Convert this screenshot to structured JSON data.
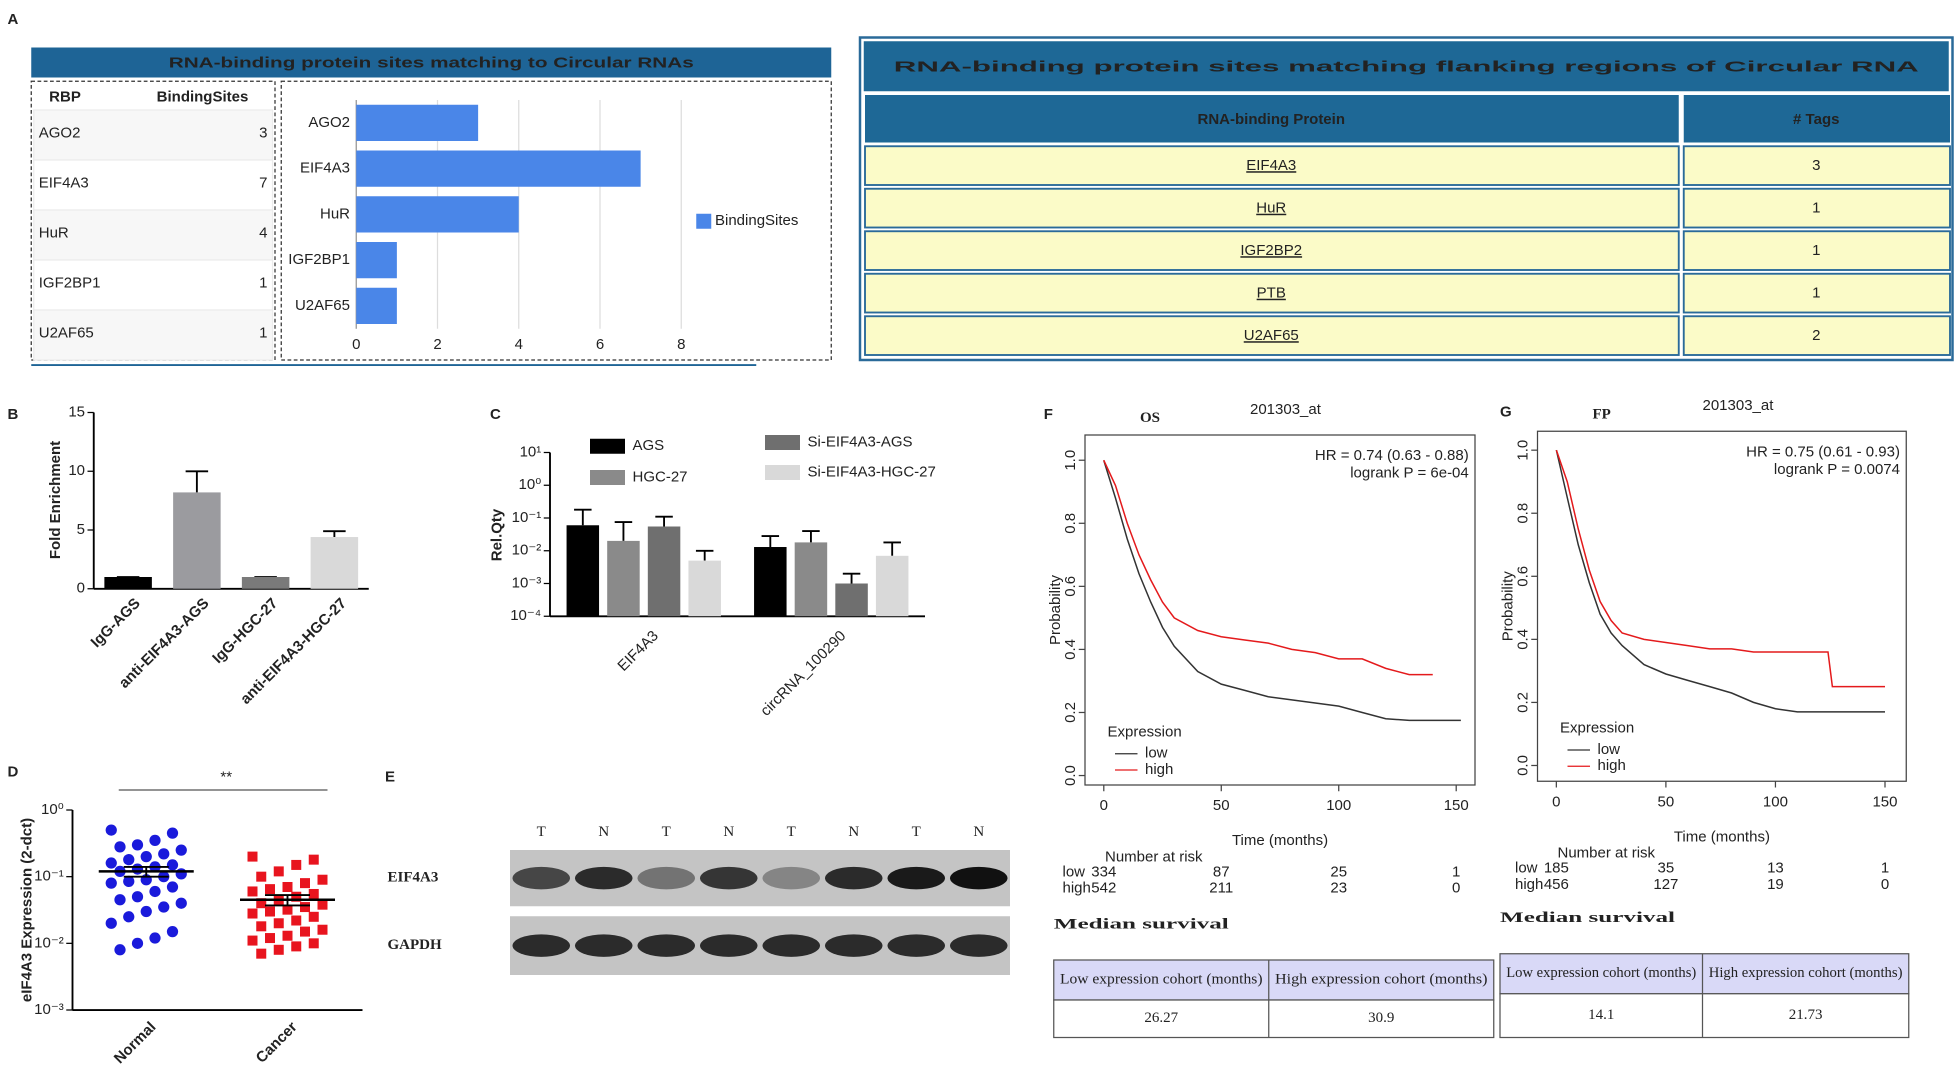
{
  "panel_labels": [
    "A",
    "B",
    "C",
    "D",
    "E",
    "F",
    "G"
  ],
  "binding_table_header": "RBP",
  "flanking_table": {
    "title": "RNA-binding protein sites matching flanking regions of Circular RNA",
    "columns": [
      "RNA-binding Protein",
      "# Tags"
    ],
    "rows": [
      [
        "EIF4A3",
        3
      ],
      [
        "HuR",
        1
      ],
      [
        "IGF2BP2",
        1
      ],
      [
        "PTB",
        1
      ],
      [
        "U2AF65",
        2
      ]
    ]
  },
  "blot": {
    "lanes": [
      "T",
      "N",
      "T",
      "N",
      "T",
      "N",
      "T",
      "N"
    ],
    "rows": [
      "EIF4A3",
      "GAPDH"
    ]
  },
  "chart_data": [
    {
      "type": "bar",
      "orientation": "horizontal",
      "title": "RNA-binding protein sites matching to Circular RNAs",
      "categories": [
        "AGO2",
        "EIF4A3",
        "HuR",
        "IGF2BP1",
        "U2AF65"
      ],
      "series": [
        {
          "name": "BindingSites",
          "color": "#4a86e8",
          "values": [
            3,
            7,
            4,
            1,
            1
          ]
        }
      ],
      "xlim": [
        0,
        8
      ],
      "xticks": [
        0,
        2,
        4,
        6,
        8
      ],
      "grid": true
    },
    {
      "type": "bar",
      "ylabel": "Fold Enrichment",
      "categories": [
        "IgG-AGS",
        "anti-EIF4A3-AGS",
        "IgG-HGC-27",
        "anti-EIF4A3-HGC-27"
      ],
      "values": [
        1,
        8.2,
        1,
        4.4
      ],
      "errors": [
        0,
        1.8,
        0,
        0.5
      ],
      "colors": [
        "#000000",
        "#9b9b9f",
        "#7a7a7a",
        "#d9d9d9"
      ],
      "ylim": [
        0,
        15
      ],
      "yticks": [
        0,
        5,
        10,
        15
      ]
    },
    {
      "type": "bar",
      "log": true,
      "ylabel": "Rel.Qty",
      "categories": [
        "EIF4A3",
        "circRNA_100290"
      ],
      "series": [
        {
          "name": "AGS",
          "color": "#000000",
          "values": [
            0.06,
            0.013
          ],
          "errors": [
            0.12,
            0.015
          ]
        },
        {
          "name": "HGC-27",
          "color": "#8a8a8a",
          "values": [
            0.02,
            0.018
          ],
          "errors": [
            0.055,
            0.022
          ]
        },
        {
          "name": "Si-EIF4A3-AGS",
          "color": "#6f6f6f",
          "values": [
            0.055,
            0.001
          ],
          "errors": [
            0.055,
            0.001
          ]
        },
        {
          "name": "Si-EIF4A3-HGC-27",
          "color": "#d9d9d9",
          "values": [
            0.005,
            0.007
          ],
          "errors": [
            0.005,
            0.011
          ]
        }
      ],
      "ylim": [
        0.0001,
        10
      ],
      "yticks": [
        {
          "value": 0.0001,
          "label": "10⁻⁴"
        },
        {
          "value": 0.001,
          "label": "10⁻³"
        },
        {
          "value": 0.01,
          "label": "10⁻²"
        },
        {
          "value": 0.1,
          "label": "10⁻¹"
        },
        {
          "value": 1,
          "label": "10⁰"
        },
        {
          "value": 10,
          "label": "10¹"
        }
      ]
    },
    {
      "type": "scatter",
      "ylabel": "eIF4A3 Expression (2-dct)",
      "categories": [
        "Normal",
        "Cancer"
      ],
      "values": [
        [
          0.5,
          0.45,
          0.35,
          0.3,
          0.28,
          0.25,
          0.22,
          0.2,
          0.18,
          0.16,
          0.15,
          0.14,
          0.13,
          0.12,
          0.11,
          0.1,
          0.09,
          0.085,
          0.08,
          0.07,
          0.06,
          0.05,
          0.045,
          0.04,
          0.035,
          0.03,
          0.025,
          0.02,
          0.015,
          0.012,
          0.01,
          0.008
        ],
        [
          0.2,
          0.18,
          0.15,
          0.12,
          0.1,
          0.09,
          0.08,
          0.07,
          0.065,
          0.06,
          0.055,
          0.05,
          0.045,
          0.04,
          0.038,
          0.035,
          0.032,
          0.03,
          0.028,
          0.025,
          0.022,
          0.02,
          0.018,
          0.016,
          0.015,
          0.013,
          0.012,
          0.011,
          0.01,
          0.009,
          0.008,
          0.007
        ]
      ],
      "colors": [
        "#1a1adb",
        "#e8141e"
      ],
      "means": [
        0.12,
        0.045
      ],
      "errors": [
        0.02,
        0.008
      ],
      "annotation": "**",
      "ylim": [
        0.001,
        1
      ],
      "yticks": [
        {
          "value": 0.001,
          "label": "10⁻³"
        },
        {
          "value": 0.01,
          "label": "10⁻²"
        },
        {
          "value": 0.1,
          "label": "10⁻¹"
        },
        {
          "value": 1,
          "label": "10⁰"
        }
      ]
    },
    {
      "type": "line",
      "title": "OS",
      "subtitle": "201303_at",
      "annotations": [
        "HR = 0.74 (0.63 - 0.88)",
        "logrank P = 6e-04"
      ],
      "xlabel": "Time (months)",
      "ylabel": "Probability",
      "legend_title": "Expression",
      "x": [
        0,
        5,
        10,
        15,
        20,
        25,
        30,
        40,
        50,
        60,
        70,
        80,
        90,
        100,
        110,
        120,
        130,
        140,
        152
      ],
      "series": [
        {
          "name": "low",
          "color": "#333333",
          "values": [
            1,
            0.88,
            0.75,
            0.64,
            0.55,
            0.47,
            0.41,
            0.33,
            0.29,
            0.27,
            0.25,
            0.24,
            0.23,
            0.22,
            0.2,
            0.18,
            0.175,
            0.175,
            0.175
          ]
        },
        {
          "name": "high",
          "color": "#e41a1c",
          "values": [
            1,
            0.92,
            0.8,
            0.7,
            0.62,
            0.55,
            0.5,
            0.46,
            0.44,
            0.43,
            0.42,
            0.4,
            0.39,
            0.37,
            0.37,
            0.34,
            0.32,
            0.32,
            null
          ]
        }
      ],
      "xlim": [
        -8,
        158
      ],
      "xticks": [
        0,
        50,
        100,
        150
      ],
      "ylim": [
        -0.03,
        1.08
      ],
      "yticks": [
        {
          "value": 0,
          "label": "0.0"
        },
        {
          "value": 0.2,
          "label": "0.2"
        },
        {
          "value": 0.4,
          "label": "0.4"
        },
        {
          "value": 0.6,
          "label": "0.6"
        },
        {
          "value": 0.8,
          "label": "0.8"
        },
        {
          "value": 1,
          "label": "1.0"
        }
      ],
      "risk_table": {
        "title": "Number at risk",
        "values": [
          [
            334,
            87,
            25,
            1
          ],
          [
            542,
            211,
            23,
            0
          ]
        ]
      },
      "median_survival": {
        "title": "Median survival",
        "columns": [
          "Low expression cohort (months)",
          "High expression cohort (months)"
        ],
        "values": [
          26.27,
          30.9
        ]
      }
    },
    {
      "type": "line",
      "title": "FP",
      "subtitle": "201303_at",
      "annotations": [
        "HR = 0.75 (0.61 - 0.93)",
        "logrank P = 0.0074"
      ],
      "xlabel": "Time (months)",
      "ylabel": "Probability",
      "legend_title": "Expression",
      "x": [
        0,
        5,
        10,
        15,
        20,
        25,
        30,
        40,
        50,
        60,
        70,
        80,
        90,
        100,
        110,
        124,
        126,
        140,
        150
      ],
      "series": [
        {
          "name": "low",
          "color": "#333333",
          "values": [
            1,
            0.85,
            0.7,
            0.58,
            0.48,
            0.42,
            0.38,
            0.32,
            0.29,
            0.27,
            0.25,
            0.23,
            0.2,
            0.18,
            0.17,
            0.17,
            0.17,
            0.17,
            0.17
          ]
        },
        {
          "name": "high",
          "color": "#e41a1c",
          "values": [
            1,
            0.9,
            0.75,
            0.62,
            0.52,
            0.46,
            0.42,
            0.4,
            0.39,
            0.38,
            0.37,
            0.37,
            0.36,
            0.36,
            0.36,
            0.36,
            0.25,
            0.25,
            0.25
          ]
        }
      ],
      "xlim": [
        -8.6,
        159.7
      ],
      "xticks": [
        0,
        50,
        100,
        150
      ],
      "ylim": [
        -0.05,
        1.06
      ],
      "yticks": [
        {
          "value": 0,
          "label": "0.0"
        },
        {
          "value": 0.2,
          "label": "0.2"
        },
        {
          "value": 0.4,
          "label": "0.4"
        },
        {
          "value": 0.6,
          "label": "0.6"
        },
        {
          "value": 0.8,
          "label": "0.8"
        },
        {
          "value": 1,
          "label": "1.0"
        }
      ],
      "risk_table": {
        "title": "Number at risk",
        "values": [
          [
            185,
            35,
            13,
            1
          ],
          [
            456,
            127,
            19,
            0
          ]
        ]
      },
      "median_survival": {
        "title": "Median survival",
        "columns": [
          "Low expression cohort (months)",
          "High expression cohort (months)"
        ],
        "values": [
          14.1,
          21.73
        ]
      }
    }
  ]
}
